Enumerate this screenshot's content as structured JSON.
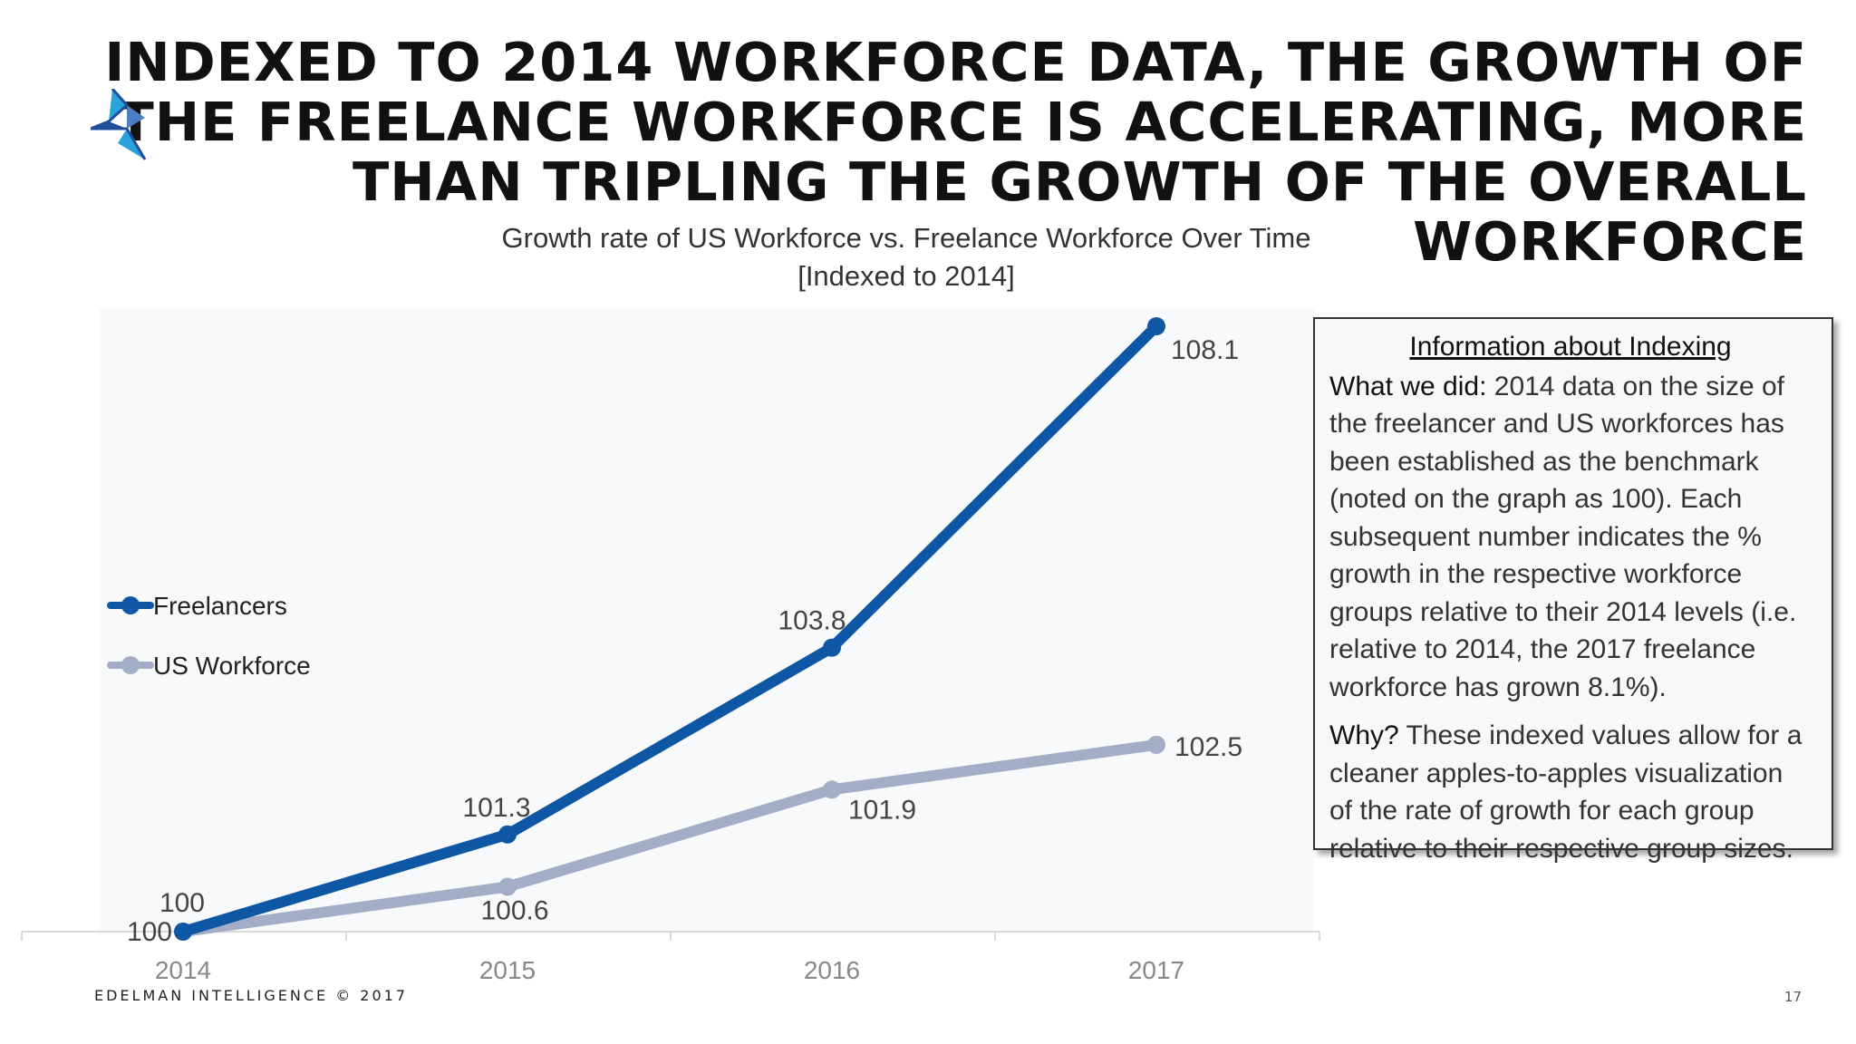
{
  "title": "Indexed to 2014 workforce data, the growth of the freelance workforce is accelerating, more than tripling the growth of the overall workforce",
  "logo": {
    "icon": "edelman-logo-icon",
    "colors": [
      "#1f4f9c",
      "#29a3d9"
    ]
  },
  "chart_data": {
    "type": "line",
    "title": "Growth rate of US Workforce vs. Freelance Workforce Over Time",
    "subtitle": "[Indexed to 2014]",
    "categories": [
      "2014",
      "2015",
      "2016",
      "2017"
    ],
    "series": [
      {
        "name": "Freelancers",
        "values": [
          100,
          101.3,
          103.8,
          108.1
        ],
        "labels": [
          "100",
          "101.3",
          "103.8",
          "108.1"
        ],
        "color": "#0d57a4"
      },
      {
        "name": "US Workforce",
        "values": [
          100,
          100.6,
          101.9,
          102.5
        ],
        "labels": [
          "100",
          "100.6",
          "101.9",
          "102.5"
        ],
        "color": "#a3adc6"
      }
    ],
    "ylim": [
      100,
      108.1
    ],
    "grid": false,
    "legend_position": "left"
  },
  "info_box": {
    "title": "Information about Indexing",
    "paragraphs": [
      {
        "lead": "What we did:",
        "text": " 2014 data on the size of the freelancer and US workforces has been established as the benchmark (noted on the graph as 100). Each subsequent number indicates the % growth in the respective workforce groups relative to their 2014 levels (i.e. relative to 2014, the 2017 freelance workforce has grown 8.1%)."
      },
      {
        "lead": "Why?",
        "text": " These indexed values allow for a cleaner apples-to-apples visualization of the rate of growth for each group relative to their respective group sizes."
      }
    ]
  },
  "footer": "EDELMAN INTELLIGENCE © 2017",
  "page_number": "17"
}
